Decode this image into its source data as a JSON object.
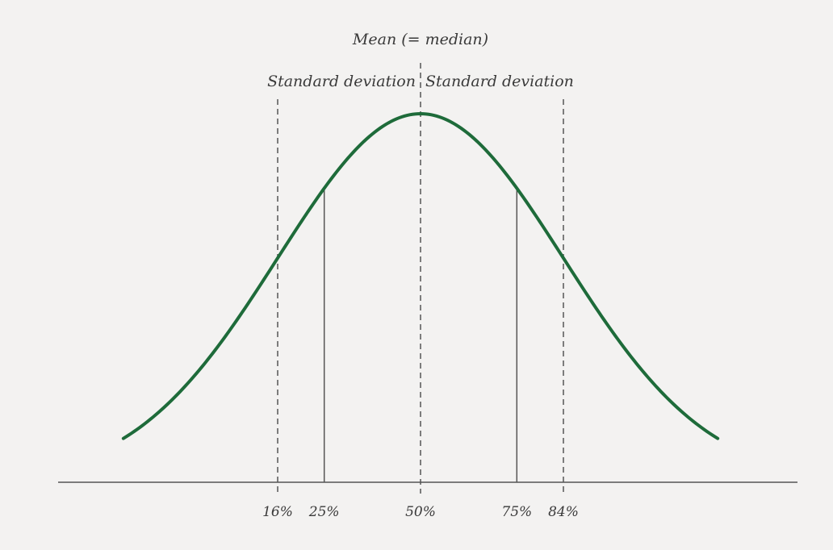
{
  "diagram": {
    "mean_label": "Mean (= median)",
    "sd_left_label": "Standard deviation",
    "sd_right_label": "Standard deviation",
    "curve_color": "#1e6b3a",
    "baseline_color": "#555555",
    "guide_color": "#555555",
    "percentiles": [
      {
        "label": "16%",
        "value": 16,
        "sigma": -1,
        "style": "dashed"
      },
      {
        "label": "25%",
        "value": 25,
        "sigma": -0.674,
        "style": "solid"
      },
      {
        "label": "50%",
        "value": 50,
        "sigma": 0,
        "style": "dashed"
      },
      {
        "label": "75%",
        "value": 75,
        "sigma": 0.674,
        "style": "solid"
      },
      {
        "label": "84%",
        "value": 84,
        "sigma": 1,
        "style": "dashed"
      }
    ]
  }
}
